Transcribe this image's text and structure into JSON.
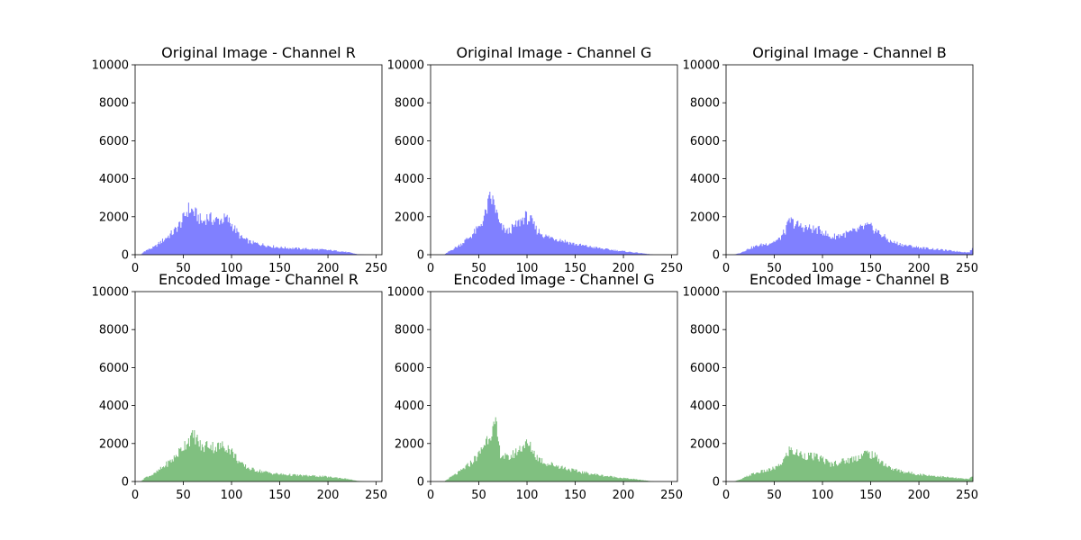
{
  "figure": {
    "background": "#ffffff",
    "axes_color": "#000000",
    "colors": {
      "original": "#8080ff",
      "encoded": "#80c080"
    }
  },
  "chart_data": [
    {
      "type": "bar",
      "id": "orig-r",
      "title": "Original Image - Channel R",
      "color": "#8080ff",
      "xlim": [
        0,
        256
      ],
      "ylim": [
        0,
        10000
      ],
      "xticks": [
        "0",
        "50",
        "100",
        "150",
        "200",
        "250"
      ],
      "yticks": [
        "0",
        "2000",
        "4000",
        "6000",
        "8000",
        "10000"
      ],
      "bins": {
        "start": 0,
        "width": 1,
        "note_values": "histogram counts per intensity level"
      },
      "profile": [
        [
          0,
          0
        ],
        [
          6,
          0
        ],
        [
          10,
          200
        ],
        [
          20,
          400
        ],
        [
          30,
          800
        ],
        [
          40,
          1200
        ],
        [
          48,
          1700
        ],
        [
          55,
          2400
        ],
        [
          60,
          2300
        ],
        [
          70,
          1700
        ],
        [
          75,
          2000
        ],
        [
          82,
          1800
        ],
        [
          90,
          1850
        ],
        [
          95,
          1900
        ],
        [
          100,
          1600
        ],
        [
          110,
          900
        ],
        [
          120,
          650
        ],
        [
          130,
          550
        ],
        [
          140,
          450
        ],
        [
          150,
          380
        ],
        [
          170,
          320
        ],
        [
          190,
          280
        ],
        [
          210,
          200
        ],
        [
          222,
          120
        ],
        [
          230,
          30
        ],
        [
          240,
          0
        ],
        [
          256,
          0
        ]
      ]
    },
    {
      "type": "bar",
      "id": "orig-g",
      "title": "Original Image - Channel G",
      "color": "#8080ff",
      "xlim": [
        0,
        256
      ],
      "ylim": [
        0,
        10000
      ],
      "xticks": [
        "0",
        "50",
        "100",
        "150",
        "200",
        "250"
      ],
      "yticks": [
        "0",
        "2000",
        "4000",
        "6000",
        "8000",
        "10000"
      ],
      "profile": [
        [
          0,
          0
        ],
        [
          14,
          0
        ],
        [
          20,
          200
        ],
        [
          30,
          500
        ],
        [
          40,
          900
        ],
        [
          50,
          1400
        ],
        [
          56,
          2000
        ],
        [
          62,
          3000
        ],
        [
          66,
          2700
        ],
        [
          72,
          1500
        ],
        [
          80,
          1200
        ],
        [
          90,
          1600
        ],
        [
          98,
          2000
        ],
        [
          104,
          1800
        ],
        [
          110,
          1300
        ],
        [
          120,
          950
        ],
        [
          130,
          850
        ],
        [
          140,
          700
        ],
        [
          150,
          550
        ],
        [
          165,
          420
        ],
        [
          180,
          300
        ],
        [
          200,
          180
        ],
        [
          215,
          100
        ],
        [
          225,
          40
        ],
        [
          232,
          0
        ],
        [
          256,
          0
        ]
      ]
    },
    {
      "type": "bar",
      "id": "orig-b",
      "title": "Original Image - Channel B",
      "color": "#8080ff",
      "xlim": [
        0,
        256
      ],
      "ylim": [
        0,
        10000
      ],
      "xticks": [
        "0",
        "50",
        "100",
        "150",
        "200",
        "250"
      ],
      "yticks": [
        "0",
        "2000",
        "4000",
        "6000",
        "8000",
        "10000"
      ],
      "profile": [
        [
          0,
          0
        ],
        [
          8,
          0
        ],
        [
          15,
          100
        ],
        [
          25,
          350
        ],
        [
          35,
          500
        ],
        [
          45,
          600
        ],
        [
          55,
          800
        ],
        [
          62,
          1300
        ],
        [
          66,
          1800
        ],
        [
          72,
          1600
        ],
        [
          80,
          1450
        ],
        [
          90,
          1350
        ],
        [
          100,
          1250
        ],
        [
          108,
          900
        ],
        [
          115,
          1000
        ],
        [
          125,
          1100
        ],
        [
          135,
          1250
        ],
        [
          145,
          1500
        ],
        [
          152,
          1400
        ],
        [
          160,
          1100
        ],
        [
          170,
          700
        ],
        [
          185,
          500
        ],
        [
          200,
          380
        ],
        [
          215,
          300
        ],
        [
          230,
          220
        ],
        [
          245,
          150
        ],
        [
          252,
          120
        ],
        [
          255,
          300
        ],
        [
          256,
          300
        ]
      ]
    },
    {
      "type": "bar",
      "id": "enc-r",
      "title": "Encoded Image - Channel R",
      "color": "#80c080",
      "xlim": [
        0,
        256
      ],
      "ylim": [
        0,
        10000
      ],
      "xticks": [
        "0",
        "50",
        "100",
        "150",
        "200",
        "250"
      ],
      "yticks": [
        "0",
        "2000",
        "4000",
        "6000",
        "8000",
        "10000"
      ],
      "profile": [
        [
          0,
          0
        ],
        [
          6,
          0
        ],
        [
          10,
          200
        ],
        [
          20,
          400
        ],
        [
          30,
          800
        ],
        [
          40,
          1200
        ],
        [
          48,
          1700
        ],
        [
          55,
          2200
        ],
        [
          62,
          2400
        ],
        [
          70,
          1700
        ],
        [
          75,
          2000
        ],
        [
          82,
          1800
        ],
        [
          90,
          1850
        ],
        [
          95,
          1850
        ],
        [
          100,
          1600
        ],
        [
          110,
          900
        ],
        [
          120,
          650
        ],
        [
          130,
          550
        ],
        [
          140,
          450
        ],
        [
          150,
          380
        ],
        [
          170,
          320
        ],
        [
          190,
          280
        ],
        [
          210,
          200
        ],
        [
          222,
          120
        ],
        [
          230,
          30
        ],
        [
          240,
          0
        ],
        [
          256,
          0
        ]
      ]
    },
    {
      "type": "bar",
      "id": "enc-g",
      "title": "Encoded Image - Channel G",
      "color": "#80c080",
      "xlim": [
        0,
        256
      ],
      "ylim": [
        0,
        10000
      ],
      "xticks": [
        "0",
        "50",
        "100",
        "150",
        "200",
        "250"
      ],
      "yticks": [
        "0",
        "2000",
        "4000",
        "6000",
        "8000",
        "10000"
      ],
      "profile": [
        [
          0,
          0
        ],
        [
          14,
          0
        ],
        [
          20,
          200
        ],
        [
          30,
          500
        ],
        [
          40,
          900
        ],
        [
          50,
          1400
        ],
        [
          56,
          2000
        ],
        [
          62,
          2600
        ],
        [
          68,
          2900
        ],
        [
          72,
          1500
        ],
        [
          80,
          1200
        ],
        [
          90,
          1600
        ],
        [
          98,
          2000
        ],
        [
          104,
          1800
        ],
        [
          110,
          1300
        ],
        [
          120,
          950
        ],
        [
          130,
          850
        ],
        [
          140,
          700
        ],
        [
          150,
          550
        ],
        [
          165,
          420
        ],
        [
          180,
          300
        ],
        [
          200,
          180
        ],
        [
          215,
          100
        ],
        [
          225,
          40
        ],
        [
          232,
          0
        ],
        [
          256,
          0
        ]
      ]
    },
    {
      "type": "bar",
      "id": "enc-b",
      "title": "Encoded Image - Channel B",
      "color": "#80c080",
      "xlim": [
        0,
        256
      ],
      "ylim": [
        0,
        10000
      ],
      "xticks": [
        "0",
        "50",
        "100",
        "150",
        "200",
        "250"
      ],
      "yticks": [
        "0",
        "2000",
        "4000",
        "6000",
        "8000",
        "10000"
      ],
      "profile": [
        [
          0,
          0
        ],
        [
          8,
          0
        ],
        [
          15,
          100
        ],
        [
          25,
          350
        ],
        [
          35,
          500
        ],
        [
          45,
          600
        ],
        [
          55,
          800
        ],
        [
          62,
          1300
        ],
        [
          66,
          1700
        ],
        [
          72,
          1500
        ],
        [
          80,
          1400
        ],
        [
          90,
          1300
        ],
        [
          100,
          1200
        ],
        [
          108,
          900
        ],
        [
          115,
          1000
        ],
        [
          125,
          1100
        ],
        [
          135,
          1250
        ],
        [
          145,
          1500
        ],
        [
          152,
          1400
        ],
        [
          160,
          1100
        ],
        [
          170,
          700
        ],
        [
          185,
          500
        ],
        [
          200,
          380
        ],
        [
          215,
          300
        ],
        [
          230,
          220
        ],
        [
          245,
          150
        ],
        [
          252,
          120
        ],
        [
          255,
          300
        ],
        [
          256,
          300
        ]
      ]
    }
  ]
}
